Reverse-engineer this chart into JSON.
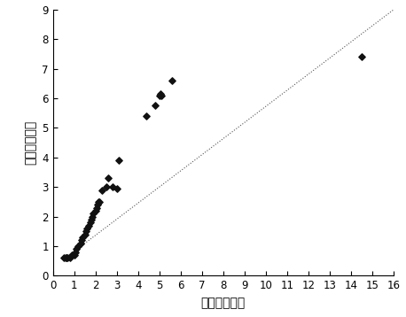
{
  "scatter_x": [
    0.5,
    0.6,
    0.65,
    0.7,
    0.8,
    0.9,
    1.0,
    1.05,
    1.1,
    1.2,
    1.3,
    1.35,
    1.4,
    1.5,
    1.55,
    1.6,
    1.7,
    1.75,
    1.8,
    1.85,
    1.9,
    2.0,
    2.05,
    2.1,
    2.15,
    2.2,
    2.3,
    2.5,
    2.6,
    2.8,
    3.0,
    3.1,
    4.4,
    4.8,
    5.0,
    5.05,
    5.1,
    5.6,
    14.5
  ],
  "scatter_y": [
    0.6,
    0.6,
    0.6,
    0.6,
    0.6,
    0.7,
    0.7,
    0.8,
    0.9,
    1.0,
    1.1,
    1.2,
    1.3,
    1.4,
    1.5,
    1.6,
    1.7,
    1.8,
    1.9,
    2.0,
    2.1,
    2.2,
    2.3,
    2.4,
    2.5,
    2.5,
    2.9,
    3.0,
    3.3,
    3.0,
    2.95,
    3.9,
    5.4,
    5.75,
    6.1,
    6.15,
    6.1,
    6.6,
    7.4
  ],
  "line_x": [
    0.5,
    16
  ],
  "line_y": [
    0.55,
    9.0
  ],
  "xlabel": "烟气苦味指数",
  "ylabel": "感官评价分値",
  "xlim": [
    0,
    16
  ],
  "ylim": [
    0,
    9
  ],
  "xticks": [
    0,
    1,
    2,
    3,
    4,
    5,
    6,
    7,
    8,
    9,
    10,
    11,
    12,
    13,
    14,
    15,
    16
  ],
  "yticks": [
    0,
    1,
    2,
    3,
    4,
    5,
    6,
    7,
    8,
    9
  ],
  "marker_color": "#111111",
  "line_color": "#555555",
  "line_style": ":",
  "bg_color": "#ffffff"
}
